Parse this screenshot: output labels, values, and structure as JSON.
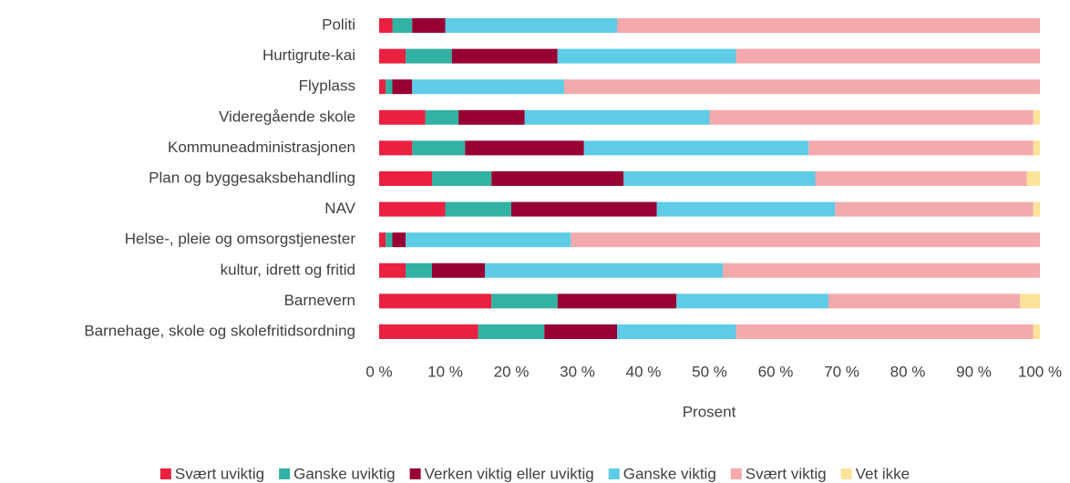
{
  "chart_data": {
    "type": "stacked_barh",
    "categories": [
      "Politi",
      "Hurtigrute-kai",
      "Flyplass",
      "Videregående skole",
      "Kommuneadministrasjonen",
      "Plan og byggesaksbehandling",
      "NAV",
      "Helse-, pleie og omsorgstjenester",
      "kultur, idrett og fritid",
      "Barnevern",
      "Barnehage, skole og skolefritidsordning"
    ],
    "series": [
      {
        "name": "Svært uviktig",
        "color": "#e9203f",
        "values": [
          2,
          4,
          1,
          7,
          5,
          8,
          10,
          1,
          4,
          17,
          15
        ]
      },
      {
        "name": "Ganske uviktig",
        "color": "#32b2a2",
        "values": [
          3,
          7,
          1,
          5,
          8,
          9,
          10,
          1,
          4,
          10,
          10
        ]
      },
      {
        "name": "Verken viktig eller uviktig",
        "color": "#960032",
        "values": [
          5,
          16,
          3,
          10,
          18,
          20,
          22,
          2,
          8,
          18,
          11
        ]
      },
      {
        "name": "Ganske viktig",
        "color": "#5ecce6",
        "values": [
          26,
          27,
          23,
          28,
          34,
          29,
          27,
          25,
          36,
          23,
          18
        ]
      },
      {
        "name": "Svært viktig",
        "color": "#f4aaad",
        "values": [
          64,
          46,
          72,
          49,
          34,
          32,
          30,
          71,
          48,
          29,
          45
        ]
      },
      {
        "name": "Vet ikke",
        "color": "#fde39a",
        "values": [
          0,
          0,
          0,
          1,
          1,
          2,
          1,
          0,
          0,
          3,
          1
        ]
      }
    ],
    "xlabel": "Prosent",
    "xlim": [
      0,
      100
    ],
    "xticks": [
      {
        "value": 0,
        "label": "0 %"
      },
      {
        "value": 10,
        "label": "10 %"
      },
      {
        "value": 20,
        "label": "20 %"
      },
      {
        "value": 30,
        "label": "30 %"
      },
      {
        "value": 40,
        "label": "40 %"
      },
      {
        "value": 50,
        "label": "50 %"
      },
      {
        "value": 60,
        "label": "60 %"
      },
      {
        "value": 70,
        "label": "70 %"
      },
      {
        "value": 80,
        "label": "80 %"
      },
      {
        "value": 90,
        "label": "90 %"
      },
      {
        "value": 100,
        "label": "100 %"
      }
    ],
    "legend": "bottom"
  }
}
